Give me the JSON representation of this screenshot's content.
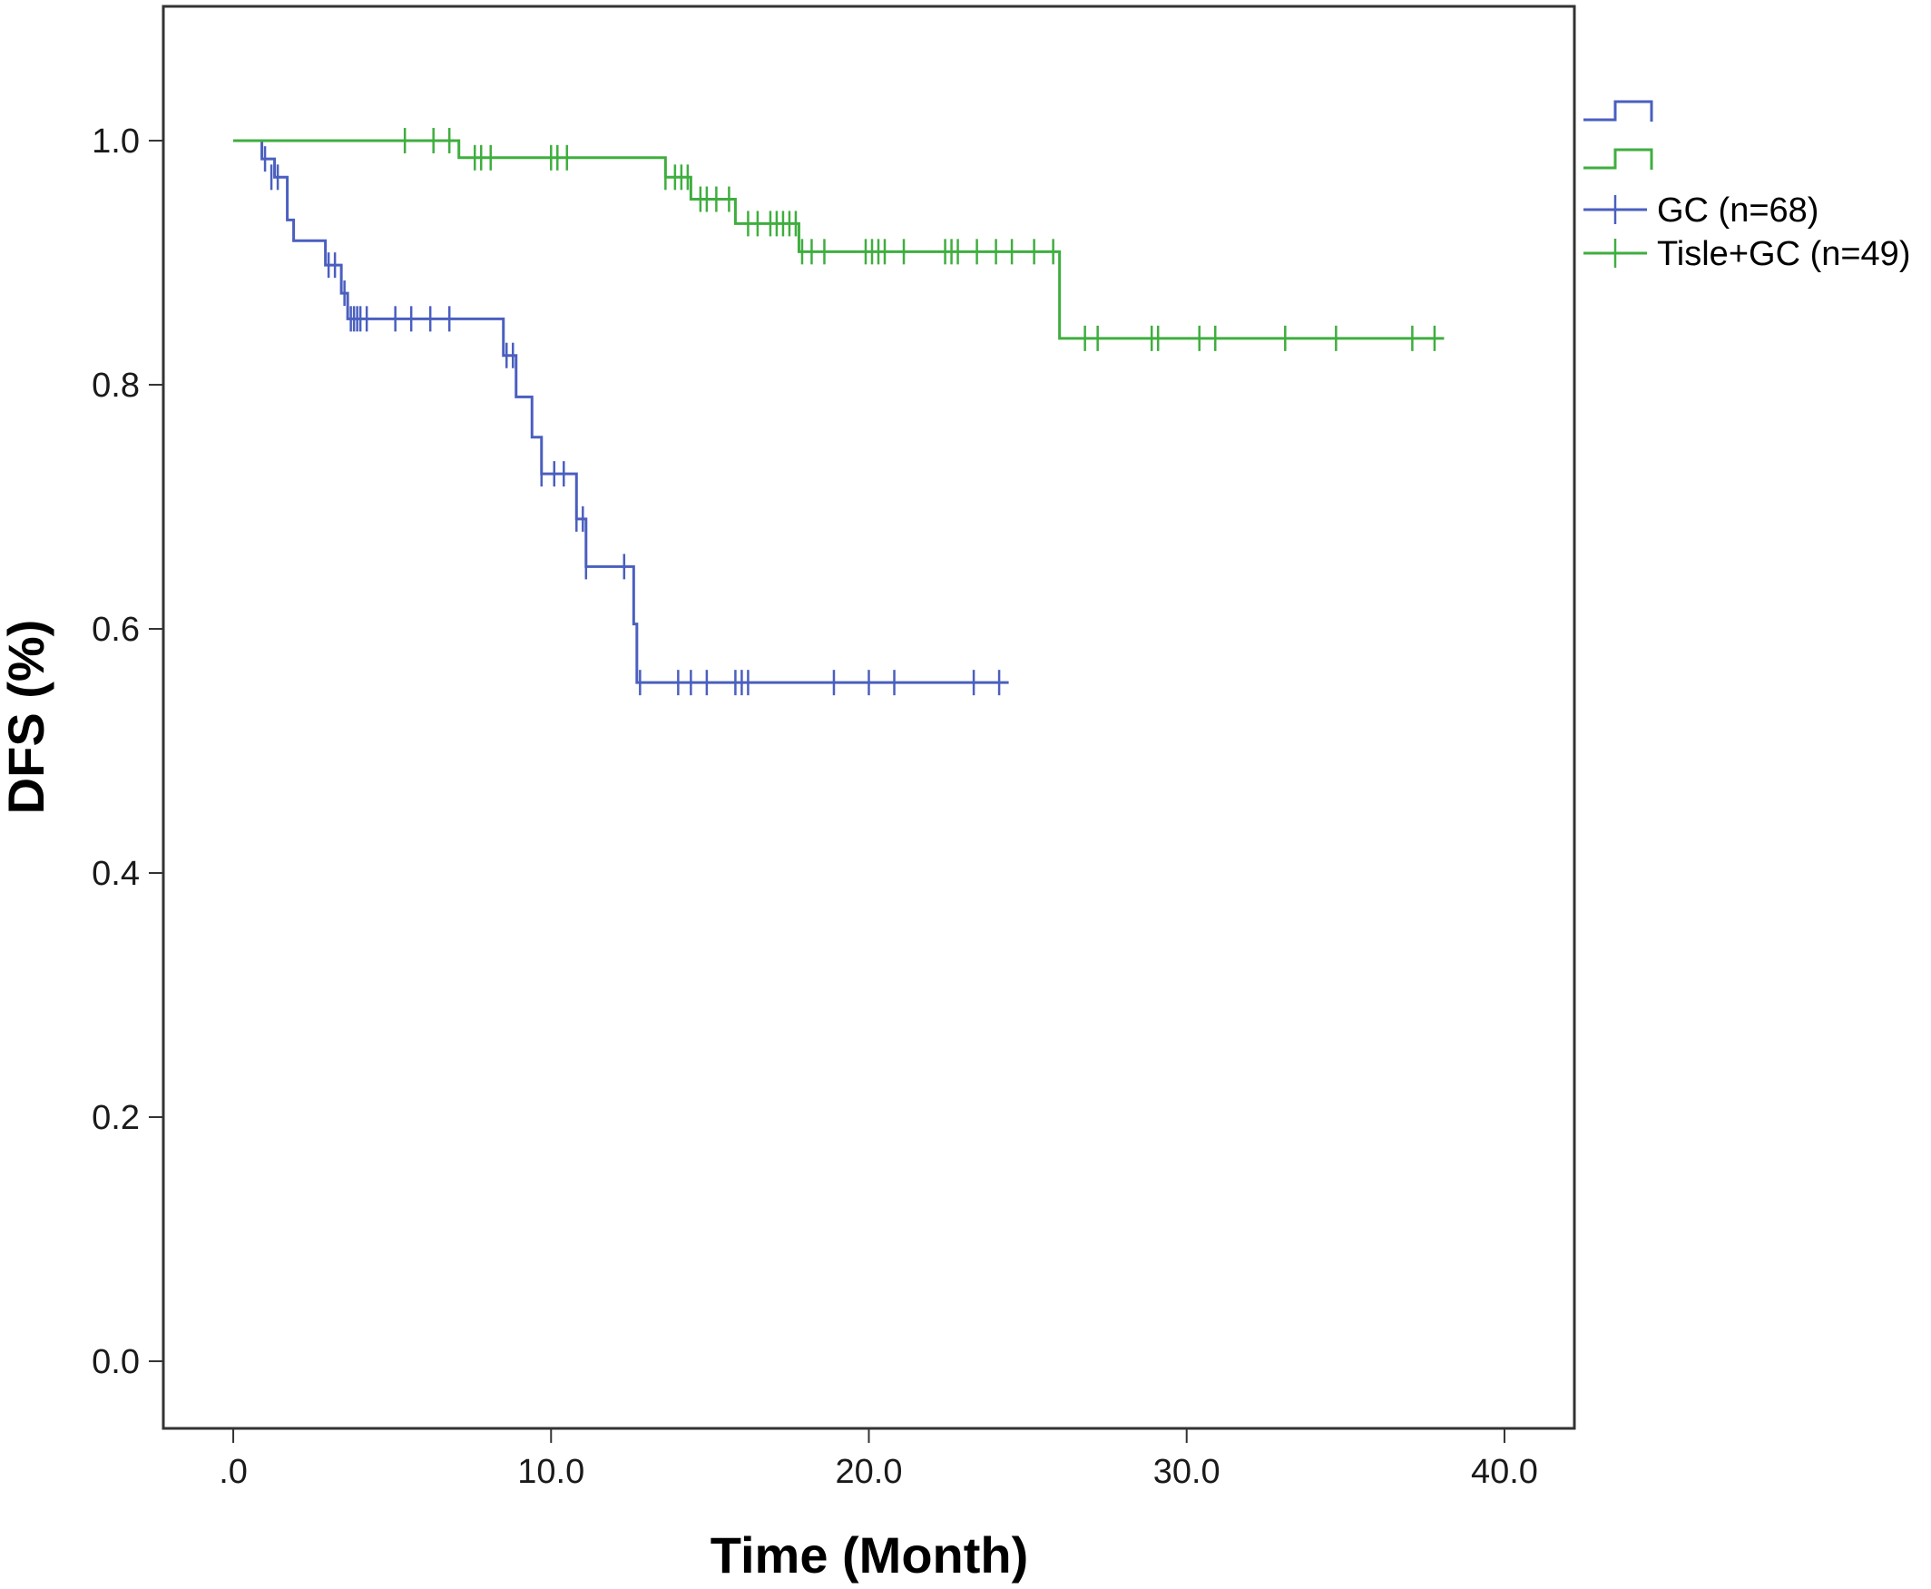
{
  "chart_data": {
    "type": "line",
    "title": "",
    "xlabel": "Time (Month)",
    "ylabel": "DFS (%)",
    "xlim": [
      -2.2,
      42.2
    ],
    "ylim": [
      -0.055,
      1.11
    ],
    "x_ticks": [
      0,
      10,
      20,
      30,
      40
    ],
    "x_tick_labels": [
      ".0",
      "10.0",
      "20.0",
      "30.0",
      "40.0"
    ],
    "y_ticks": [
      0.0,
      0.2,
      0.4,
      0.6,
      0.8,
      1.0
    ],
    "y_tick_labels": [
      "0.0",
      "0.2",
      "0.4",
      "0.6",
      "0.8",
      "1.0"
    ],
    "grid": false,
    "legend_position": "right",
    "series": [
      {
        "name": "GC (n=68)",
        "color": "#4a5fbf",
        "steps": [
          [
            0,
            1.0
          ],
          [
            0.9,
            0.985
          ],
          [
            1.3,
            0.97
          ],
          [
            1.7,
            0.935
          ],
          [
            1.9,
            0.918
          ],
          [
            2.9,
            0.898
          ],
          [
            3.4,
            0.875
          ],
          [
            3.6,
            0.854
          ],
          [
            8.5,
            0.824
          ],
          [
            8.9,
            0.79
          ],
          [
            9.4,
            0.757
          ],
          [
            9.7,
            0.727
          ],
          [
            10.8,
            0.69
          ],
          [
            11.1,
            0.651
          ],
          [
            12.6,
            0.604
          ],
          [
            12.7,
            0.556
          ],
          [
            24.4,
            0.556
          ]
        ],
        "censor_x": [
          1.0,
          1.2,
          1.4,
          3.0,
          3.2,
          3.5,
          3.7,
          3.8,
          3.9,
          4.0,
          4.2,
          5.1,
          5.6,
          6.2,
          6.8,
          8.6,
          8.8,
          9.7,
          10.1,
          10.4,
          10.8,
          11.0,
          11.1,
          12.3,
          12.8,
          14.0,
          14.4,
          14.9,
          15.8,
          16.0,
          16.2,
          18.9,
          20.0,
          20.8,
          23.3,
          24.1
        ],
        "censor_y": [
          0.985,
          0.97,
          0.97,
          0.898,
          0.898,
          0.875,
          0.854,
          0.854,
          0.854,
          0.854,
          0.854,
          0.854,
          0.854,
          0.854,
          0.854,
          0.824,
          0.824,
          0.727,
          0.727,
          0.727,
          0.69,
          0.69,
          0.651,
          0.651,
          0.556,
          0.556,
          0.556,
          0.556,
          0.556,
          0.556,
          0.556,
          0.556,
          0.556,
          0.556,
          0.556,
          0.556
        ]
      },
      {
        "name": "Tisle+GC (n=49)",
        "color": "#3fae3f",
        "steps": [
          [
            0,
            1.0
          ],
          [
            7.1,
            0.986
          ],
          [
            13.6,
            0.97
          ],
          [
            14.4,
            0.952
          ],
          [
            15.8,
            0.932
          ],
          [
            17.8,
            0.909
          ],
          [
            26.0,
            0.838
          ],
          [
            38.1,
            0.838
          ]
        ],
        "censor_x": [
          5.4,
          6.3,
          6.8,
          7.6,
          7.8,
          8.1,
          10.0,
          10.2,
          10.5,
          13.6,
          13.9,
          14.1,
          14.3,
          14.7,
          14.9,
          15.2,
          15.6,
          16.2,
          16.5,
          16.9,
          17.1,
          17.3,
          17.5,
          17.7,
          17.9,
          18.2,
          18.6,
          19.9,
          20.1,
          20.3,
          20.5,
          21.1,
          22.4,
          22.6,
          22.8,
          23.4,
          24.0,
          24.5,
          25.2,
          25.8,
          26.8,
          27.2,
          28.9,
          29.1,
          30.4,
          30.9,
          33.1,
          34.7,
          37.1,
          37.8
        ],
        "censor_y": [
          1.0,
          1.0,
          1.0,
          0.986,
          0.986,
          0.986,
          0.986,
          0.986,
          0.986,
          0.97,
          0.97,
          0.97,
          0.97,
          0.952,
          0.952,
          0.952,
          0.952,
          0.932,
          0.932,
          0.932,
          0.932,
          0.932,
          0.932,
          0.932,
          0.909,
          0.909,
          0.909,
          0.909,
          0.909,
          0.909,
          0.909,
          0.909,
          0.909,
          0.909,
          0.909,
          0.909,
          0.909,
          0.909,
          0.909,
          0.909,
          0.838,
          0.838,
          0.838,
          0.838,
          0.838,
          0.838,
          0.838,
          0.838,
          0.838,
          0.838
        ]
      }
    ]
  }
}
